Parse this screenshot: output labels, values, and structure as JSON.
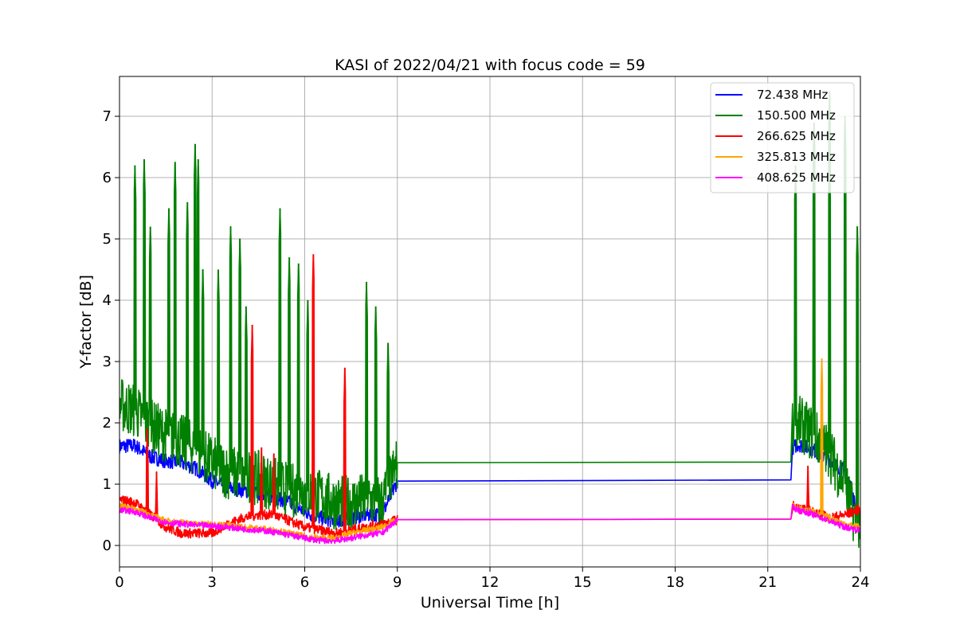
{
  "chart_data": {
    "type": "line",
    "title": "KASI of 2022/04/21 with focus code = 59",
    "xlabel": "Universal Time [h]",
    "ylabel": "Y-factor [dB]",
    "xlim": [
      0,
      24
    ],
    "ylim": [
      -0.35,
      7.65
    ],
    "x_ticks": [
      0,
      3,
      6,
      9,
      12,
      15,
      18,
      21,
      24
    ],
    "y_ticks": [
      0,
      1,
      2,
      3,
      4,
      5,
      6,
      7
    ],
    "grid": true,
    "legend_position": "top-right",
    "data_gap": [
      9.0,
      21.75
    ],
    "series": [
      {
        "name": "72.438 MHz",
        "color": "#0000ff",
        "x": [
          0,
          0.5,
          1,
          1.5,
          2,
          2.5,
          3,
          3.5,
          4,
          4.5,
          5,
          5.5,
          6,
          6.5,
          7,
          7.5,
          8,
          8.5,
          9.0,
          21.75,
          21.8,
          22,
          22.5,
          23,
          23.5,
          24
        ],
        "values": [
          1.62,
          1.63,
          1.45,
          1.38,
          1.35,
          1.25,
          1.05,
          0.95,
          0.9,
          0.85,
          0.8,
          0.7,
          0.55,
          0.45,
          0.4,
          0.45,
          0.5,
          0.5,
          1.05,
          1.07,
          1.6,
          1.65,
          1.55,
          1.4,
          1.2,
          0.4
        ]
      },
      {
        "name": "150.500 MHz",
        "color": "#008000",
        "x": [
          0,
          0.5,
          1,
          1.5,
          2,
          2.5,
          3,
          3.5,
          4,
          4.5,
          5,
          5.5,
          6,
          6.5,
          7,
          7.5,
          8,
          8.5,
          9.0,
          21.75,
          21.8,
          22,
          22.5,
          23,
          23.5,
          24
        ],
        "values": [
          2.3,
          2.2,
          1.95,
          1.8,
          1.7,
          1.55,
          1.35,
          1.2,
          1.15,
          1.1,
          1.0,
          0.9,
          0.9,
          0.8,
          0.7,
          0.7,
          0.75,
          0.7,
          1.35,
          1.36,
          1.9,
          2.0,
          1.8,
          1.5,
          1.0,
          0.1
        ],
        "peaks": [
          {
            "x": 0.5,
            "y": 6.2
          },
          {
            "x": 0.8,
            "y": 6.3
          },
          {
            "x": 1.0,
            "y": 5.2
          },
          {
            "x": 1.6,
            "y": 5.5
          },
          {
            "x": 1.8,
            "y": 6.25
          },
          {
            "x": 2.2,
            "y": 5.6
          },
          {
            "x": 2.45,
            "y": 6.55
          },
          {
            "x": 2.55,
            "y": 6.3
          },
          {
            "x": 2.7,
            "y": 4.5
          },
          {
            "x": 3.2,
            "y": 4.5
          },
          {
            "x": 3.6,
            "y": 5.2
          },
          {
            "x": 3.9,
            "y": 5.0
          },
          {
            "x": 4.1,
            "y": 3.9
          },
          {
            "x": 5.2,
            "y": 5.5
          },
          {
            "x": 5.5,
            "y": 4.7
          },
          {
            "x": 5.8,
            "y": 4.6
          },
          {
            "x": 6.1,
            "y": 4.0
          },
          {
            "x": 8.0,
            "y": 4.3
          },
          {
            "x": 8.3,
            "y": 3.9
          },
          {
            "x": 8.7,
            "y": 3.3
          },
          {
            "x": 21.9,
            "y": 6.2
          },
          {
            "x": 22.5,
            "y": 6.9
          },
          {
            "x": 23.0,
            "y": 7.4
          },
          {
            "x": 23.5,
            "y": 7.0
          },
          {
            "x": 23.9,
            "y": 5.2
          }
        ]
      },
      {
        "name": "266.625 MHz",
        "color": "#ff0000",
        "x": [
          0,
          0.5,
          1,
          1.5,
          2,
          2.5,
          3,
          3.5,
          4,
          4.5,
          5,
          5.5,
          6,
          6.5,
          7,
          7.5,
          8,
          8.5,
          9.0,
          21.75,
          21.8,
          22,
          22.5,
          23,
          23.5,
          24
        ],
        "values": [
          0.75,
          0.7,
          0.5,
          0.3,
          0.2,
          0.2,
          0.2,
          0.35,
          0.45,
          0.5,
          0.5,
          0.4,
          0.3,
          0.25,
          0.2,
          0.25,
          0.3,
          0.35,
          0.42,
          0.43,
          0.65,
          0.6,
          0.55,
          0.45,
          0.5,
          0.6
        ],
        "peaks": [
          {
            "x": 0.9,
            "y": 1.9
          },
          {
            "x": 1.2,
            "y": 1.2
          },
          {
            "x": 4.3,
            "y": 3.6
          },
          {
            "x": 4.6,
            "y": 1.6
          },
          {
            "x": 5.0,
            "y": 1.5
          },
          {
            "x": 6.28,
            "y": 4.75
          },
          {
            "x": 7.3,
            "y": 2.9
          },
          {
            "x": 22.3,
            "y": 1.3
          }
        ]
      },
      {
        "name": "325.813 MHz",
        "color": "#ffa500",
        "x": [
          0,
          0.5,
          1,
          1.5,
          2,
          2.5,
          3,
          3.5,
          4,
          4.5,
          5,
          5.5,
          6,
          6.5,
          7,
          7.5,
          8,
          8.5,
          9.0,
          21.75,
          21.8,
          22,
          22.5,
          23,
          23.5,
          24
        ],
        "values": [
          0.65,
          0.6,
          0.5,
          0.4,
          0.38,
          0.35,
          0.35,
          0.33,
          0.3,
          0.28,
          0.25,
          0.2,
          0.15,
          0.12,
          0.12,
          0.2,
          0.25,
          0.3,
          0.42,
          0.43,
          0.65,
          0.6,
          0.55,
          0.45,
          0.35,
          0.3
        ],
        "peaks": [
          {
            "x": 22.75,
            "y": 3.05
          }
        ]
      },
      {
        "name": "408.625 MHz",
        "color": "#ff00ff",
        "x": [
          0,
          0.5,
          1,
          1.5,
          2,
          2.5,
          3,
          3.5,
          4,
          4.5,
          5,
          5.5,
          6,
          6.5,
          7,
          7.5,
          8,
          8.5,
          9.0,
          21.75,
          21.8,
          22,
          22.5,
          23,
          23.5,
          24
        ],
        "values": [
          0.58,
          0.55,
          0.45,
          0.38,
          0.35,
          0.33,
          0.32,
          0.3,
          0.27,
          0.25,
          0.22,
          0.17,
          0.12,
          0.08,
          0.08,
          0.12,
          0.17,
          0.2,
          0.42,
          0.43,
          0.62,
          0.58,
          0.5,
          0.4,
          0.3,
          0.25
        ]
      }
    ]
  }
}
